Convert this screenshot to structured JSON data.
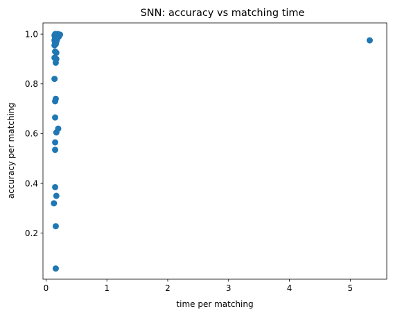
{
  "chart_data": {
    "type": "scatter",
    "title": "SNN: accuracy vs matching time",
    "xlabel": "time per matching",
    "ylabel": "accuracy per matching",
    "xlim": [
      -0.05,
      5.6
    ],
    "ylim": [
      0.015,
      1.045
    ],
    "xticks": [
      0,
      1,
      2,
      3,
      4,
      5
    ],
    "xtick_labels": [
      "0",
      "1",
      "2",
      "3",
      "4",
      "5"
    ],
    "yticks": [
      0.2,
      0.4,
      0.6,
      0.8,
      1.0
    ],
    "ytick_labels": [
      "0.2",
      "0.4",
      "0.6",
      "0.8",
      "1.0"
    ],
    "marker_color": "#1f77b4",
    "grid": false,
    "points": [
      {
        "x": 0.15,
        "y": 1.0
      },
      {
        "x": 0.16,
        "y": 1.0
      },
      {
        "x": 0.18,
        "y": 1.0
      },
      {
        "x": 0.2,
        "y": 1.0
      },
      {
        "x": 0.23,
        "y": 0.998
      },
      {
        "x": 0.14,
        "y": 0.995
      },
      {
        "x": 0.17,
        "y": 0.993
      },
      {
        "x": 0.21,
        "y": 0.99
      },
      {
        "x": 0.19,
        "y": 0.988
      },
      {
        "x": 0.15,
        "y": 0.985
      },
      {
        "x": 0.16,
        "y": 0.982
      },
      {
        "x": 0.18,
        "y": 0.978
      },
      {
        "x": 0.14,
        "y": 0.975
      },
      {
        "x": 0.17,
        "y": 0.97
      },
      {
        "x": 0.15,
        "y": 0.965
      },
      {
        "x": 0.16,
        "y": 0.96
      },
      {
        "x": 0.14,
        "y": 0.955
      },
      {
        "x": 0.15,
        "y": 0.93
      },
      {
        "x": 0.17,
        "y": 0.925
      },
      {
        "x": 0.14,
        "y": 0.905
      },
      {
        "x": 0.17,
        "y": 0.9
      },
      {
        "x": 0.16,
        "y": 0.885
      },
      {
        "x": 0.14,
        "y": 0.82
      },
      {
        "x": 0.16,
        "y": 0.74
      },
      {
        "x": 0.15,
        "y": 0.73
      },
      {
        "x": 0.15,
        "y": 0.665
      },
      {
        "x": 0.2,
        "y": 0.62
      },
      {
        "x": 0.17,
        "y": 0.605
      },
      {
        "x": 0.15,
        "y": 0.565
      },
      {
        "x": 0.15,
        "y": 0.535
      },
      {
        "x": 0.15,
        "y": 0.385
      },
      {
        "x": 0.17,
        "y": 0.35
      },
      {
        "x": 0.13,
        "y": 0.32
      },
      {
        "x": 0.16,
        "y": 0.228
      },
      {
        "x": 0.16,
        "y": 0.058
      },
      {
        "x": 5.32,
        "y": 0.975
      }
    ]
  }
}
